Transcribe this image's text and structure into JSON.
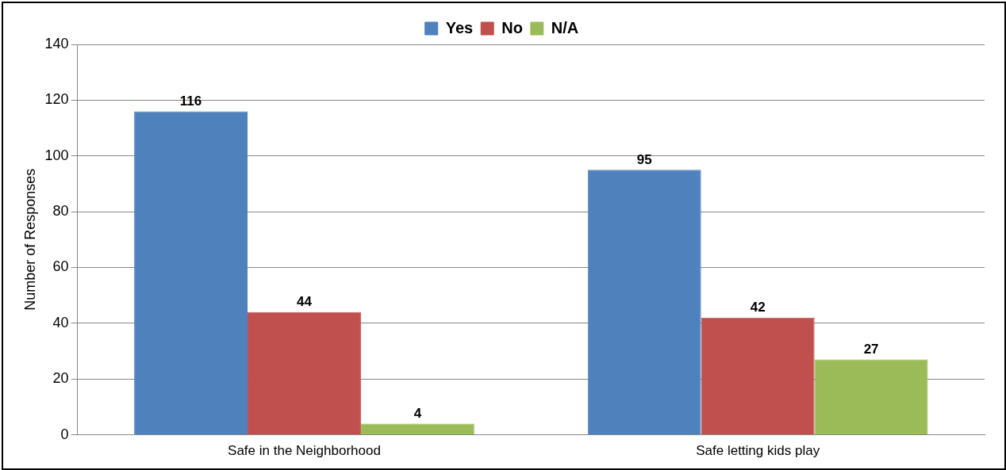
{
  "chart_data": {
    "type": "bar",
    "ylabel": "Number of Responses",
    "categories": [
      "Safe in the Neighborhood",
      "Safe letting kids play"
    ],
    "series": [
      {
        "name": "Yes",
        "color": "#4f81bd",
        "values": [
          116,
          95
        ]
      },
      {
        "name": "No",
        "color": "#c0504d",
        "values": [
          44,
          42
        ]
      },
      {
        "name": "N/A",
        "color": "#9bbb59",
        "values": [
          4,
          27
        ]
      }
    ],
    "ylim": [
      0,
      140
    ],
    "yticks": [
      0,
      20,
      40,
      60,
      80,
      100,
      120,
      140
    ],
    "grid": "y",
    "legend": "top",
    "data_labels": true
  }
}
